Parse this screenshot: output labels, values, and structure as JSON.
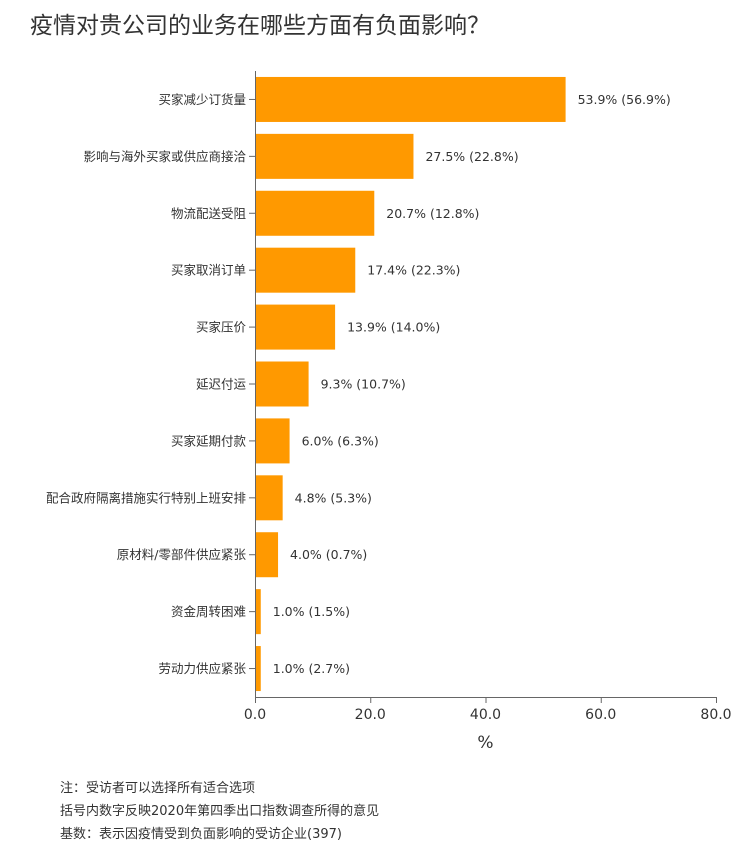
{
  "title": "疫情对贵公司的业务在哪些方面有负面影响？",
  "notes": [
    "注：受访者可以选择所有适合选项",
    "括号内数字反映2020年第四季出口指数调查所得的意见",
    "基数：表示因疫情受到负面影响的受访企业(397)"
  ],
  "colors": {
    "bar": "#FF9900",
    "axis": "#666666",
    "text": "#333333"
  },
  "chart_data": {
    "type": "bar",
    "orientation": "horizontal",
    "categories": [
      "买家减少订货量",
      "影响与海外买家或供应商接洽",
      "物流配送受阻",
      "买家取消订单",
      "买家压价",
      "延迟付运",
      "买家延期付款",
      "配合政府隔离措施实行特别上班安排",
      "原材料/零部件供应紧张",
      "资金周转困难",
      "劳动力供应紧张"
    ],
    "values": [
      53.9,
      27.5,
      20.7,
      17.4,
      13.9,
      9.3,
      6.0,
      4.8,
      4.0,
      1.0,
      1.0
    ],
    "previous_values": [
      56.9,
      22.8,
      12.8,
      22.3,
      14.0,
      10.7,
      6.3,
      5.3,
      0.7,
      1.5,
      2.7
    ],
    "data_labels": [
      "53.9% (56.9%)",
      "27.5% (22.8%)",
      "20.7% (12.8%)",
      "17.4% (22.3%)",
      "13.9% (14.0%)",
      "9.3% (10.7%)",
      "6.0% (6.3%)",
      "4.8% (5.3%)",
      "4.0% (0.7%)",
      "1.0% (1.5%)",
      "1.0% (2.7%)"
    ],
    "xlabel": "%",
    "ylabel": "",
    "xlim": [
      0,
      80
    ],
    "xticks": [
      0,
      20,
      40,
      60,
      80
    ],
    "xtick_labels": [
      "0.0",
      "20.0",
      "40.0",
      "60.0",
      "80.0"
    ],
    "grid": false,
    "legend": "none"
  }
}
